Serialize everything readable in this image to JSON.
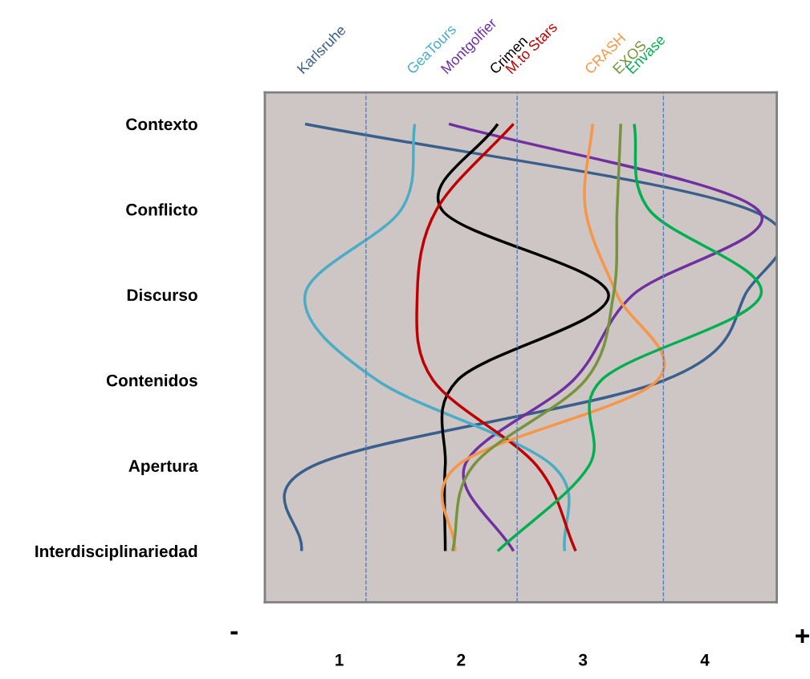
{
  "chart_data": {
    "type": "line",
    "orientation": "horizontal",
    "categories": [
      "Contexto",
      "Conflicto",
      "Discurso",
      "Contenidos",
      "Apertura",
      "Interdisciplinariedad"
    ],
    "xlim": [
      0.39,
      4.59
    ],
    "xticks": [
      1,
      2,
      3,
      4
    ],
    "grid": false,
    "marker": "none",
    "line_style": "solid",
    "series": [
      {
        "name": "Karlsruhe",
        "color": "#3b5f8c",
        "values": [
          0.72,
          4.36,
          4.33,
          3.67,
          0.79,
          0.69
        ]
      },
      {
        "name": "Montgolfier",
        "color": "#7030a0",
        "values": [
          1.9,
          4.43,
          3.41,
          2.92,
          2.03,
          2.43
        ]
      },
      {
        "name": "GeaTours",
        "color": "#4bacc6",
        "values": [
          1.62,
          1.51,
          0.72,
          1.31,
          2.75,
          2.85
        ]
      },
      {
        "name": "Crimen",
        "color": "#000000",
        "values": [
          2.3,
          1.84,
          3.21,
          1.97,
          1.87,
          1.87
        ]
      },
      {
        "name": "M.to Stars",
        "color": "#c00000",
        "values": [
          2.43,
          1.8,
          1.64,
          1.77,
          2.62,
          2.94
        ]
      },
      {
        "name": "CRASH",
        "color": "#f79646",
        "values": [
          3.08,
          3.02,
          3.28,
          3.61,
          1.97,
          1.95
        ]
      },
      {
        "name": "EXOS",
        "color": "#77933c",
        "values": [
          3.31,
          3.28,
          3.25,
          3.02,
          2.1,
          1.93
        ]
      },
      {
        "name": "Envase",
        "color": "#00b050",
        "values": [
          3.42,
          3.54,
          4.46,
          3.15,
          3.05,
          2.3
        ]
      }
    ],
    "ref_lines": [
      {
        "axis": "x",
        "value": 1.22,
        "color": "#4f81bd",
        "line_style": "dashed"
      },
      {
        "axis": "x",
        "value": 2.46,
        "color": "#4f81bd",
        "line_style": "dashed"
      },
      {
        "axis": "x",
        "value": 3.66,
        "color": "#4f81bd",
        "line_style": "dashed"
      }
    ],
    "annotations": [
      "-",
      "+"
    ]
  }
}
